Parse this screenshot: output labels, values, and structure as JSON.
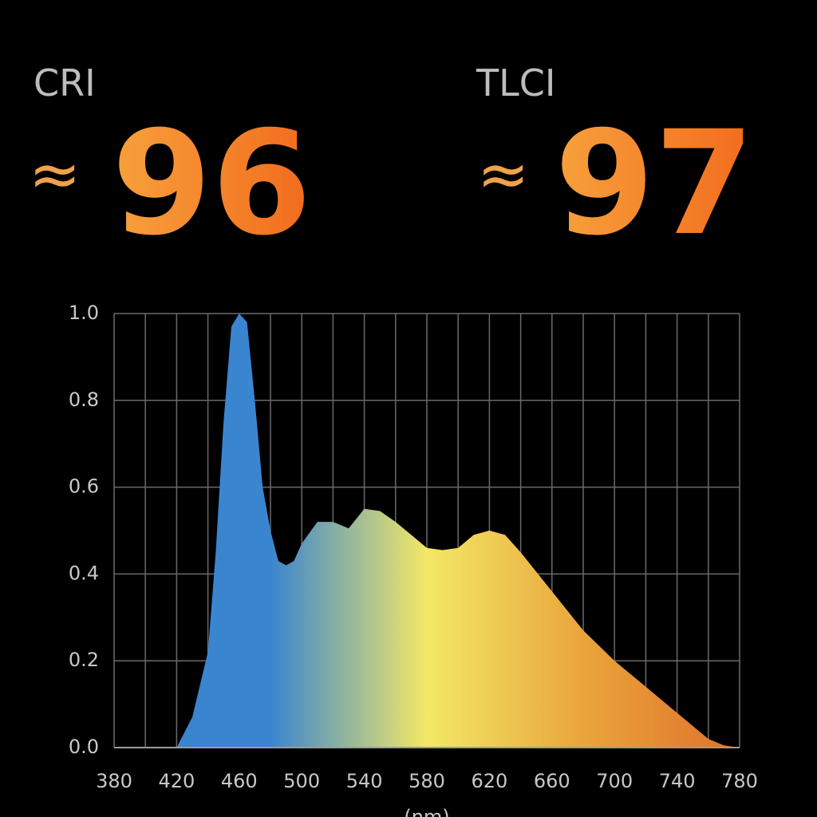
{
  "metrics": [
    {
      "label": "CRI",
      "approx": "≈",
      "value": 96
    },
    {
      "label": "TLCI",
      "approx": "≈",
      "value": 97
    }
  ],
  "chart_data": {
    "type": "area",
    "x_label": "(nm)",
    "x": [
      420,
      430,
      440,
      445,
      450,
      455,
      460,
      465,
      470,
      475,
      480,
      485,
      490,
      495,
      500,
      510,
      520,
      530,
      540,
      550,
      560,
      570,
      580,
      590,
      600,
      610,
      620,
      630,
      640,
      660,
      680,
      700,
      720,
      740,
      760,
      770,
      780
    ],
    "values": [
      0.0,
      0.07,
      0.22,
      0.45,
      0.75,
      0.97,
      1.0,
      0.98,
      0.8,
      0.6,
      0.5,
      0.43,
      0.42,
      0.43,
      0.47,
      0.52,
      0.52,
      0.505,
      0.55,
      0.545,
      0.52,
      0.49,
      0.46,
      0.455,
      0.46,
      0.49,
      0.5,
      0.49,
      0.45,
      0.36,
      0.27,
      0.2,
      0.14,
      0.08,
      0.02,
      0.005,
      0.0
    ],
    "color_stops": [
      "#3a85d0",
      "#3a85d0",
      "#f3e866",
      "#e9a53b",
      "#e0702a"
    ],
    "xlim": [
      380,
      780
    ],
    "ylim": [
      0,
      1
    ],
    "xticks": [
      380,
      420,
      460,
      500,
      540,
      580,
      620,
      660,
      700,
      740,
      780
    ],
    "xminor": [
      400,
      440,
      480,
      520,
      560,
      600,
      640,
      680,
      720,
      760
    ],
    "yticks": [
      {
        "value": 0,
        "label": "0.0"
      },
      0.2,
      0.4,
      0.6,
      0.8,
      {
        "value": 1,
        "label": "1.0"
      }
    ],
    "grid": true
  }
}
